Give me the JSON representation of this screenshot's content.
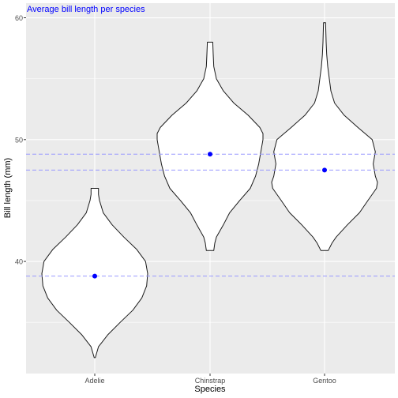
{
  "chart_data": {
    "type": "violin",
    "title": "Average bill length per species",
    "xlabel": "Species",
    "ylabel": "Bill length (mm)",
    "categories": [
      "Adelie",
      "Chinstrap",
      "Gentoo"
    ],
    "ylim": [
      30.8,
      61.2
    ],
    "yticks": [
      40,
      50,
      60
    ],
    "grid": true,
    "colors": {
      "panel": "#ebebeb",
      "grid": "#ffffff",
      "violin_fill": "#ffffff",
      "violin_stroke": "#1a1a1a",
      "mean_point": "#0000ff",
      "mean_line": "#9999ff",
      "title": "#0000ff",
      "axis_text": "#4d4d4d"
    },
    "violins": [
      {
        "category": "Adelie",
        "mean": 38.8,
        "profile": [
          [
            32.1,
            0.01
          ],
          [
            33.0,
            0.07
          ],
          [
            34.0,
            0.25
          ],
          [
            35.0,
            0.48
          ],
          [
            36.0,
            0.72
          ],
          [
            37.0,
            0.89
          ],
          [
            38.0,
            0.98
          ],
          [
            39.0,
            1.0
          ],
          [
            40.0,
            0.96
          ],
          [
            41.0,
            0.79
          ],
          [
            42.0,
            0.55
          ],
          [
            43.0,
            0.33
          ],
          [
            44.0,
            0.16
          ],
          [
            45.0,
            0.09
          ],
          [
            45.5,
            0.07
          ],
          [
            46.0,
            0.07
          ]
        ]
      },
      {
        "category": "Chinstrap",
        "mean": 48.8,
        "profile": [
          [
            40.9,
            0.07
          ],
          [
            41.5,
            0.09
          ],
          [
            42.0,
            0.12
          ],
          [
            43.0,
            0.25
          ],
          [
            44.0,
            0.37
          ],
          [
            45.0,
            0.56
          ],
          [
            46.0,
            0.76
          ],
          [
            47.0,
            0.86
          ],
          [
            48.0,
            0.92
          ],
          [
            49.0,
            0.96
          ],
          [
            50.0,
            1.0
          ],
          [
            50.5,
            1.0
          ],
          [
            51.0,
            0.94
          ],
          [
            52.0,
            0.72
          ],
          [
            53.0,
            0.45
          ],
          [
            54.0,
            0.25
          ],
          [
            55.0,
            0.12
          ],
          [
            56.0,
            0.07
          ],
          [
            57.0,
            0.06
          ],
          [
            58.0,
            0.05
          ]
        ]
      },
      {
        "category": "Gentoo",
        "mean": 47.5,
        "profile": [
          [
            40.9,
            0.07
          ],
          [
            41.5,
            0.14
          ],
          [
            42.0,
            0.22
          ],
          [
            43.0,
            0.43
          ],
          [
            44.0,
            0.66
          ],
          [
            45.0,
            0.82
          ],
          [
            46.0,
            0.98
          ],
          [
            46.5,
            1.0
          ],
          [
            47.0,
            0.96
          ],
          [
            48.0,
            0.92
          ],
          [
            49.0,
            0.96
          ],
          [
            50.0,
            0.9
          ],
          [
            51.0,
            0.63
          ],
          [
            52.0,
            0.37
          ],
          [
            53.0,
            0.19
          ],
          [
            54.0,
            0.12
          ],
          [
            55.0,
            0.09
          ],
          [
            56.0,
            0.06
          ],
          [
            57.0,
            0.04
          ],
          [
            58.0,
            0.03
          ],
          [
            59.6,
            0.02
          ]
        ]
      }
    ]
  }
}
